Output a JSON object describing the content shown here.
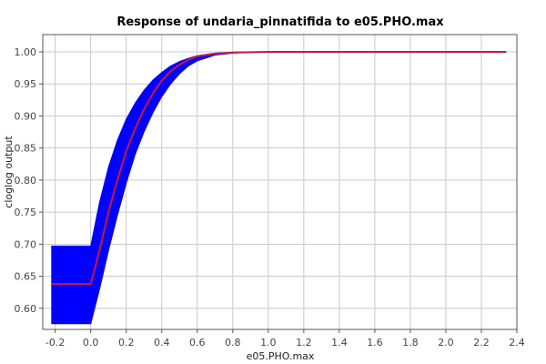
{
  "chart_data": {
    "type": "line",
    "title": "Response of undaria_pinnatifida to e05.PHO.max",
    "xlabel": "e05.PHO.max",
    "ylabel": "cloglog output",
    "xlim": [
      -0.27,
      2.4
    ],
    "ylim": [
      0.567,
      1.027
    ],
    "grid": true,
    "x_ticks": [
      -0.2,
      0.0,
      0.2,
      0.4,
      0.6,
      0.8,
      1.0,
      1.2,
      1.4,
      1.6,
      1.8,
      2.0,
      2.2,
      2.4
    ],
    "x_tick_labels": [
      "-0.2",
      "0.0",
      "0.2",
      "0.4",
      "0.6",
      "0.8",
      "1.0",
      "1.2",
      "1.4",
      "1.6",
      "1.8",
      "2.0",
      "2.2",
      "2.4"
    ],
    "y_ticks": [
      0.6,
      0.65,
      0.7,
      0.75,
      0.8,
      0.85,
      0.9,
      0.95,
      1.0
    ],
    "y_tick_labels": [
      "0.60",
      "0.65",
      "0.70",
      "0.75",
      "0.80",
      "0.85",
      "0.90",
      "0.95",
      "1.00"
    ],
    "series": [
      {
        "role": "mean response",
        "color": "#c8173f",
        "x": [
          -0.22,
          0.0,
          0.05,
          0.1,
          0.15,
          0.2,
          0.25,
          0.3,
          0.35,
          0.4,
          0.45,
          0.5,
          0.55,
          0.6,
          0.7,
          0.8,
          0.9,
          1.0,
          1.2,
          1.6,
          2.0,
          2.34
        ],
        "y": [
          0.638,
          0.638,
          0.69,
          0.75,
          0.8,
          0.845,
          0.88,
          0.91,
          0.935,
          0.955,
          0.97,
          0.98,
          0.988,
          0.993,
          0.997,
          0.999,
          0.9995,
          1.0,
          1.0,
          1.0,
          1.0,
          1.0
        ]
      },
      {
        "role": "variability band",
        "color": "#0000ff",
        "x": [
          -0.22,
          0.0,
          0.05,
          0.1,
          0.15,
          0.2,
          0.25,
          0.3,
          0.35,
          0.4,
          0.45,
          0.5,
          0.55,
          0.6,
          0.7,
          0.8,
          0.9,
          1.0
        ],
        "upper": [
          0.697,
          0.697,
          0.765,
          0.82,
          0.862,
          0.895,
          0.92,
          0.94,
          0.956,
          0.968,
          0.978,
          0.985,
          0.99,
          0.994,
          0.998,
          0.9995,
          1.0,
          1.0
        ],
        "lower": [
          0.576,
          0.576,
          0.63,
          0.69,
          0.745,
          0.795,
          0.84,
          0.875,
          0.905,
          0.93,
          0.95,
          0.966,
          0.978,
          0.986,
          0.995,
          0.998,
          0.9995,
          1.0
        ]
      }
    ]
  }
}
